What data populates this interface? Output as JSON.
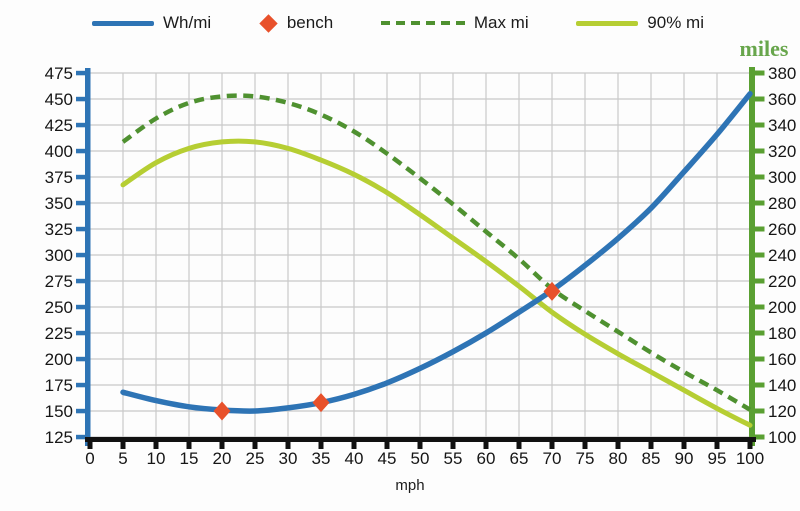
{
  "page": {
    "background": "#fdfdfd"
  },
  "legend": {
    "items": [
      {
        "label": "Wh/mi",
        "swatch": "line",
        "color": "#2E74B5"
      },
      {
        "label": "bench",
        "swatch": "diamond",
        "color": "#E8512B"
      },
      {
        "label": "Max mi",
        "swatch": "dash",
        "color": "#4F9130"
      },
      {
        "label": "90% mi",
        "swatch": "line",
        "color": "#B6CE33"
      }
    ]
  },
  "chart_data": {
    "type": "line",
    "title": "",
    "xlabel": "mph",
    "grid": true,
    "colors": {
      "gridline": "#C9C9C9",
      "x_axis": "#111111",
      "tick_text": "#161616"
    },
    "x_axis": {
      "min": 0,
      "max": 100,
      "step": 5,
      "ticks": [
        0,
        5,
        10,
        15,
        20,
        25,
        30,
        35,
        40,
        45,
        50,
        55,
        60,
        65,
        70,
        75,
        80,
        85,
        90,
        95,
        100
      ]
    },
    "y_left_axis": {
      "label": "Wh/mi",
      "min": 125,
      "max": 475,
      "step": 25,
      "color": "#2E74B5",
      "ticks": [
        125,
        150,
        175,
        200,
        225,
        250,
        275,
        300,
        325,
        350,
        375,
        400,
        425,
        450,
        475
      ]
    },
    "y_right_axis": {
      "label": "miles",
      "min": 100,
      "max": 380,
      "step": 20,
      "color": "#5AA032",
      "ticks": [
        100,
        120,
        140,
        160,
        180,
        200,
        220,
        240,
        260,
        280,
        300,
        320,
        340,
        360,
        380
      ]
    },
    "x": [
      5,
      10,
      15,
      20,
      25,
      30,
      35,
      40,
      45,
      50,
      55,
      60,
      65,
      70,
      75,
      80,
      85,
      90,
      95,
      100
    ],
    "series": [
      {
        "name": "Max mi",
        "axis": "right",
        "style": "dashed",
        "color": "#4F9130",
        "width": 4.5,
        "values": [
          327,
          345,
          357,
          362,
          362,
          357,
          348,
          335,
          318,
          299,
          279,
          258,
          237,
          214,
          197,
          181,
          165,
          150,
          136,
          121
        ]
      },
      {
        "name": "90% mi",
        "axis": "right",
        "style": "solid",
        "color": "#B6CE33",
        "width": 5,
        "values": [
          294,
          311,
          322,
          327,
          327,
          322,
          313,
          302,
          288,
          271,
          253,
          235,
          216,
          196,
          179,
          164,
          150,
          136,
          122,
          109
        ]
      },
      {
        "name": "Wh/mi",
        "axis": "left",
        "style": "solid",
        "color": "#2E74B5",
        "width": 5.5,
        "values": [
          168,
          160,
          154,
          151,
          150,
          153,
          158,
          166,
          177,
          191,
          207,
          225,
          245,
          266,
          290,
          316,
          345,
          380,
          416,
          455
        ]
      },
      {
        "name": "bench",
        "axis": "left",
        "style": "points",
        "color": "#E8512B",
        "points": [
          [
            20,
            150
          ],
          [
            35,
            158
          ],
          [
            70,
            265
          ]
        ]
      }
    ]
  }
}
